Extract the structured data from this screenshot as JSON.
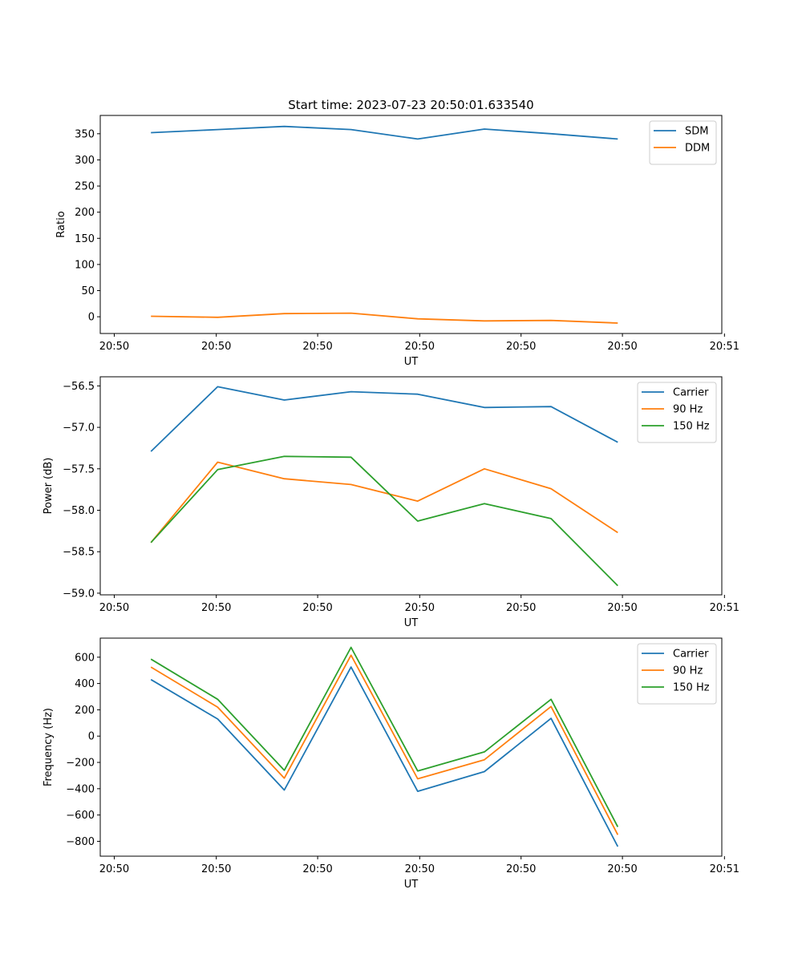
{
  "figure": {
    "title": "Start time: 2023-07-23 20:50:01.633540"
  },
  "chart_data": [
    {
      "type": "line",
      "title": "Start time: 2023-07-23 20:50:01.633540",
      "xlabel": "UT",
      "ylabel": "Ratio",
      "x": [
        1,
        2,
        3,
        4,
        5,
        6,
        7,
        8
      ],
      "xlim": [
        0.24,
        9.56
      ],
      "xticks": [
        0.45,
        1.98,
        3.5,
        5.03,
        6.55,
        8.07,
        9.6
      ],
      "xtick_labels": [
        "20:50",
        "20:50",
        "20:50",
        "20:50",
        "20:50",
        "20:50",
        "20:51"
      ],
      "ylim": [
        -32,
        385
      ],
      "yticks": [
        0,
        50,
        100,
        150,
        200,
        250,
        300,
        350
      ],
      "ytick_labels": [
        "0",
        "50",
        "100",
        "150",
        "200",
        "250",
        "300",
        "350"
      ],
      "legend_position": "top-right",
      "series": [
        {
          "name": "SDM",
          "color": "#1f77b4",
          "values": [
            352,
            358,
            364,
            358,
            340,
            359,
            350,
            340
          ]
        },
        {
          "name": "DDM",
          "color": "#ff7f0e",
          "values": [
            1,
            -1,
            6,
            7,
            -4,
            -8,
            -7,
            -12
          ]
        }
      ]
    },
    {
      "type": "line",
      "title": "",
      "xlabel": "UT",
      "ylabel": "Power (dB)",
      "x": [
        1,
        2,
        3,
        4,
        5,
        6,
        7,
        8
      ],
      "xlim": [
        0.24,
        9.56
      ],
      "xticks": [
        0.45,
        1.98,
        3.5,
        5.03,
        6.55,
        8.07,
        9.6
      ],
      "xtick_labels": [
        "20:50",
        "20:50",
        "20:50",
        "20:50",
        "20:50",
        "20:50",
        "20:51"
      ],
      "ylim": [
        -59.02,
        -56.39
      ],
      "yticks": [
        -59.0,
        -58.5,
        -58.0,
        -57.5,
        -57.0,
        -56.5
      ],
      "ytick_labels": [
        "−59.0",
        "−58.5",
        "−58.0",
        "−57.5",
        "−57.0",
        "−56.5"
      ],
      "legend_position": "top-right",
      "series": [
        {
          "name": "Carrier",
          "color": "#1f77b4",
          "values": [
            -57.29,
            -56.51,
            -56.67,
            -56.57,
            -56.6,
            -56.76,
            -56.75,
            -57.18
          ]
        },
        {
          "name": "90 Hz",
          "color": "#ff7f0e",
          "values": [
            -58.39,
            -57.42,
            -57.62,
            -57.69,
            -57.89,
            -57.5,
            -57.74,
            -58.27
          ]
        },
        {
          "name": "150 Hz",
          "color": "#2ca02c",
          "values": [
            -58.39,
            -57.51,
            -57.35,
            -57.36,
            -58.13,
            -57.92,
            -58.1,
            -58.91
          ]
        }
      ]
    },
    {
      "type": "line",
      "title": "",
      "xlabel": "UT",
      "ylabel": "Frequency (Hz)",
      "x": [
        1,
        2,
        3,
        4,
        5,
        6,
        7,
        8
      ],
      "xlim": [
        0.24,
        9.56
      ],
      "xticks": [
        0.45,
        1.98,
        3.5,
        5.03,
        6.55,
        8.07,
        9.6
      ],
      "xtick_labels": [
        "20:50",
        "20:50",
        "20:50",
        "20:50",
        "20:50",
        "20:50",
        "20:51"
      ],
      "ylim": [
        -913,
        745
      ],
      "yticks": [
        -800,
        -600,
        -400,
        -200,
        0,
        200,
        400,
        600
      ],
      "ytick_labels": [
        "−800",
        "−600",
        "−400",
        "−200",
        "0",
        "200",
        "400",
        "600"
      ],
      "legend_position": "top-right",
      "series": [
        {
          "name": "Carrier",
          "color": "#1f77b4",
          "values": [
            430,
            130,
            -410,
            525,
            -420,
            -270,
            135,
            -840
          ]
        },
        {
          "name": "90 Hz",
          "color": "#ff7f0e",
          "values": [
            525,
            220,
            -320,
            615,
            -325,
            -180,
            225,
            -750
          ]
        },
        {
          "name": "150 Hz",
          "color": "#2ca02c",
          "values": [
            585,
            280,
            -260,
            675,
            -265,
            -120,
            280,
            -690
          ]
        }
      ]
    }
  ]
}
